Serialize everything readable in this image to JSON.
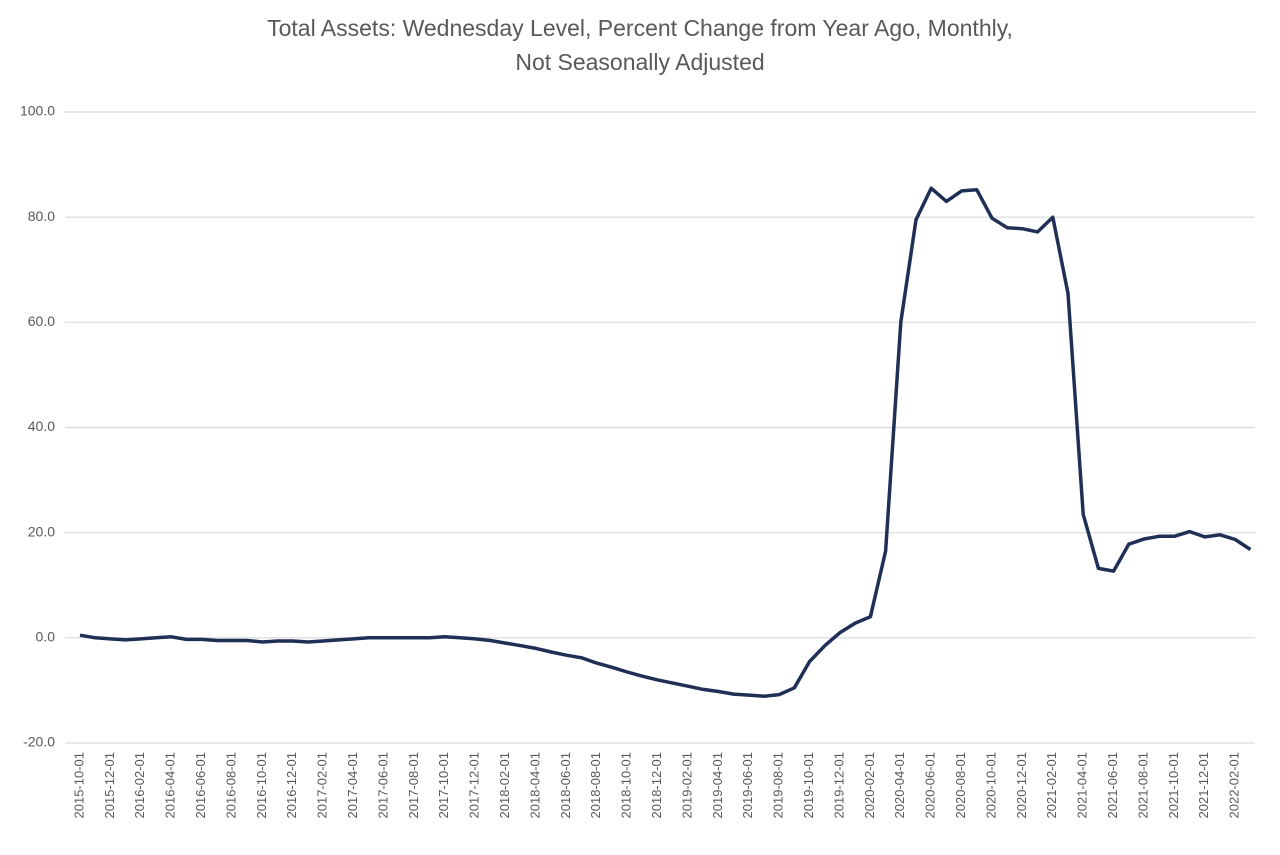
{
  "chart_data": {
    "type": "line",
    "title": "Total Assets: Wednesday Level, Percent Change from Year Ago, Monthly, Not Seasonally Adjusted",
    "categories": [
      "2015-10-01",
      null,
      "2015-12-01",
      null,
      "2016-02-01",
      null,
      "2016-04-01",
      null,
      "2016-06-01",
      null,
      "2016-08-01",
      null,
      "2016-10-01",
      null,
      "2016-12-01",
      null,
      "2017-02-01",
      null,
      "2017-04-01",
      null,
      "2017-06-01",
      null,
      "2017-08-01",
      null,
      "2017-10-01",
      null,
      "2017-12-01",
      null,
      "2018-02-01",
      null,
      "2018-04-01",
      null,
      "2018-06-01",
      null,
      "2018-08-01",
      null,
      "2018-10-01",
      null,
      "2018-12-01",
      null,
      "2019-02-01",
      null,
      "2019-04-01",
      null,
      "2019-06-01",
      null,
      "2019-08-01",
      null,
      "2019-10-01",
      null,
      "2019-12-01",
      null,
      "2020-02-01",
      null,
      "2020-04-01",
      null,
      "2020-06-01",
      null,
      "2020-08-01",
      null,
      "2020-10-01",
      null,
      "2020-12-01",
      null,
      "2021-02-01",
      null,
      "2021-04-01",
      null,
      "2021-06-01",
      null,
      "2021-08-01",
      null,
      "2021-10-01",
      null,
      "2021-12-01",
      null,
      "2022-02-01",
      null
    ],
    "series": [
      {
        "color": "#1f2f56",
        "values": [
          0.5,
          0.0,
          -0.2,
          -0.4,
          -0.2,
          0.0,
          0.2,
          -0.3,
          -0.3,
          -0.5,
          -0.5,
          -0.5,
          -0.8,
          -0.6,
          -0.6,
          -0.8,
          -0.6,
          -0.4,
          -0.2,
          0.0,
          0.0,
          0.0,
          0.0,
          0.0,
          0.2,
          0.0,
          -0.2,
          -0.5,
          -1.0,
          -1.5,
          -2.0,
          -2.7,
          -3.3,
          -3.8,
          -4.8,
          -5.6,
          -6.5,
          -7.3,
          -8.0,
          -8.6,
          -9.2,
          -9.8,
          -10.2,
          -10.7,
          -10.9,
          -11.1,
          -10.8,
          -9.5,
          -4.5,
          -1.5,
          1.0,
          2.8,
          4.0,
          16.5,
          60.0,
          79.5,
          85.5,
          83.0,
          85.0,
          85.2,
          79.8,
          78.0,
          77.8,
          77.2,
          80.0,
          65.5,
          23.5,
          13.2,
          12.7,
          17.8,
          18.8,
          19.3,
          19.3,
          20.2,
          19.2,
          19.6,
          18.7,
          16.8
        ]
      }
    ],
    "ylim": [
      -20,
      100
    ],
    "yticks": [
      {
        "value": -20,
        "label": "-20.0"
      },
      {
        "value": 0,
        "label": "0.0"
      },
      {
        "value": 20,
        "label": "20.0"
      },
      {
        "value": 40,
        "label": "40.0"
      },
      {
        "value": 60,
        "label": "60.0"
      },
      {
        "value": 80,
        "label": "80.0"
      },
      {
        "value": 100,
        "label": "100.0"
      }
    ],
    "grid": true
  }
}
